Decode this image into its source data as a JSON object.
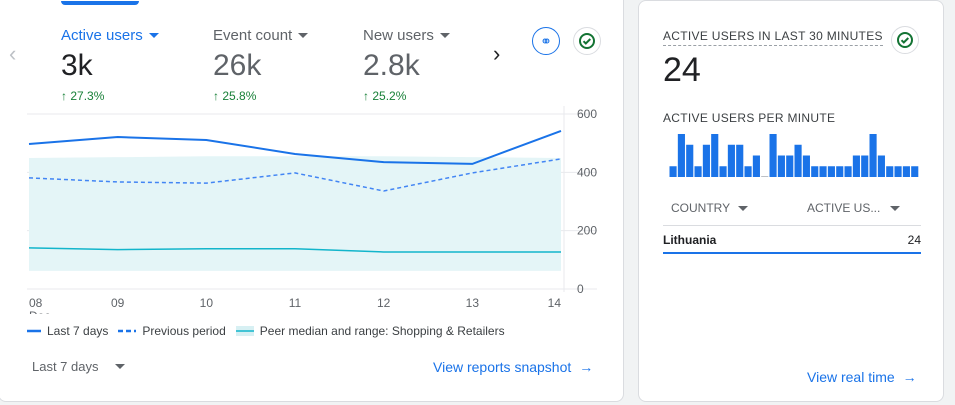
{
  "metrics": [
    {
      "label": "Active users",
      "value": "3k",
      "delta": "27.3%"
    },
    {
      "label": "Event count",
      "value": "26k",
      "delta": "25.8%"
    },
    {
      "label": "New users",
      "value": "2.8k",
      "delta": "25.2%"
    }
  ],
  "chart_data": {
    "type": "line",
    "x": [
      "08",
      "09",
      "10",
      "11",
      "12",
      "13",
      "14"
    ],
    "x_sublabel": "Dec",
    "yticks": [
      "600",
      "400",
      "200",
      "0"
    ],
    "ylim": [
      0,
      600
    ],
    "series": [
      {
        "name": "Last 7 days",
        "values": [
          497,
          521,
          511,
          463,
          435,
          429,
          542
        ],
        "color": "#1a73e8",
        "style": "solid"
      },
      {
        "name": "Previous period",
        "values": [
          381,
          367,
          363,
          398,
          336,
          398,
          446
        ],
        "color": "#4285f4",
        "style": "dashed"
      },
      {
        "name": "Peer median and range: Shopping & Retailers",
        "median": [
          141,
          135,
          138,
          138,
          127,
          127,
          127
        ],
        "upper": [
          449,
          452,
          455,
          455,
          455,
          452,
          449
        ],
        "lower": [
          62,
          62,
          62,
          62,
          62,
          62,
          62
        ],
        "color": "#12b5cb"
      }
    ]
  },
  "date_range": "Last 7 days",
  "view_snapshot": "View reports snapshot",
  "realtime": {
    "title": "ACTIVE USERS IN LAST 30 MINUTES",
    "value": "24",
    "per_minute_label": "ACTIVE USERS PER MINUTE",
    "per_minute": [
      1,
      4,
      3,
      1,
      3,
      4,
      1,
      3,
      3,
      1,
      2,
      0,
      4,
      2,
      2,
      3,
      2,
      1,
      1,
      1,
      1,
      1,
      2,
      2,
      4,
      2,
      1,
      1,
      1,
      1
    ],
    "col_country": "COUNTRY",
    "col_users": "ACTIVE US...",
    "rows": [
      {
        "country": "Lithuania",
        "users": "24",
        "share": 1
      }
    ],
    "view_link": "View real time"
  },
  "colors": {
    "accent": "#1a73e8",
    "positive": "#188038"
  }
}
